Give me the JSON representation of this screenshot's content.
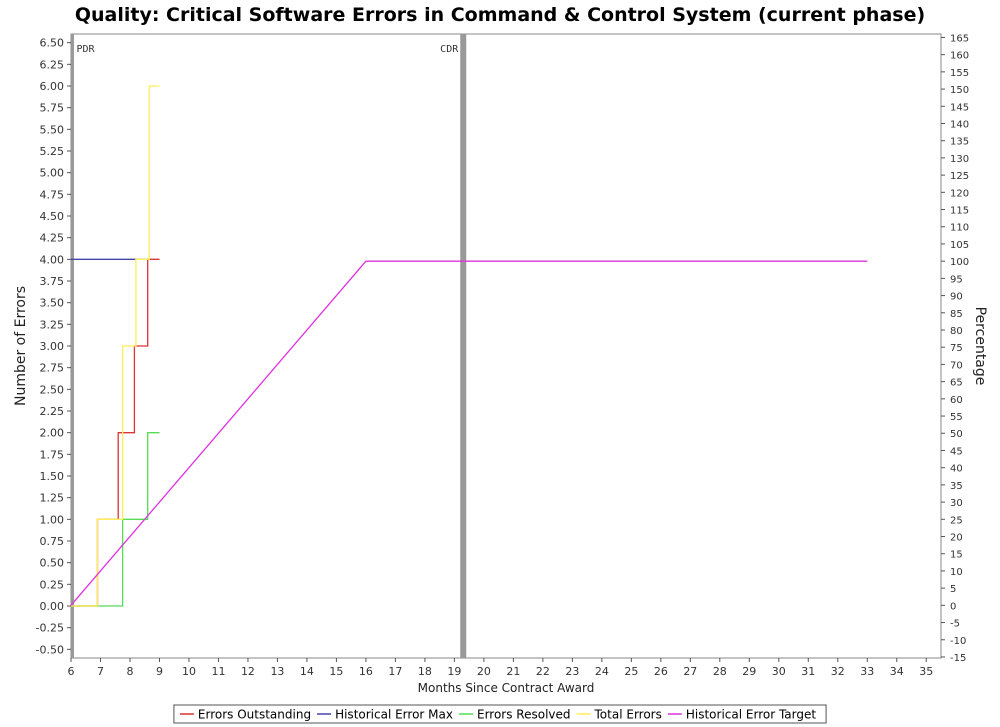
{
  "chart_data": {
    "type": "line",
    "title": "Quality: Critical Software Errors in Command & Control System (current phase)",
    "xlabel": "Months Since Contract Award",
    "ylabel": "Number of Errors",
    "y2label": "Percentage",
    "xlim": [
      6,
      35.5
    ],
    "ylim": [
      -0.6,
      6.6
    ],
    "y2lim": [
      -15.3,
      166
    ],
    "x_ticks": [
      6,
      7,
      8,
      9,
      10,
      11,
      12,
      13,
      14,
      15,
      16,
      17,
      18,
      19,
      20,
      21,
      22,
      23,
      24,
      25,
      26,
      27,
      28,
      29,
      30,
      31,
      32,
      33,
      34,
      35
    ],
    "y_ticks": [
      "-0.50",
      "-0.25",
      "0.00",
      "0.25",
      "0.50",
      "0.75",
      "1.00",
      "1.25",
      "1.50",
      "1.75",
      "2.00",
      "2.25",
      "2.50",
      "2.75",
      "3.00",
      "3.25",
      "3.50",
      "3.75",
      "4.00",
      "4.25",
      "4.50",
      "4.75",
      "5.00",
      "5.25",
      "5.50",
      "5.75",
      "6.00",
      "6.25",
      "6.50"
    ],
    "y2_ticks": [
      -15,
      -10,
      -5,
      0,
      5,
      10,
      15,
      20,
      25,
      30,
      35,
      40,
      45,
      50,
      55,
      60,
      65,
      70,
      75,
      80,
      85,
      90,
      95,
      100,
      105,
      110,
      115,
      120,
      125,
      130,
      135,
      140,
      145,
      150,
      155,
      160,
      165
    ],
    "markers": [
      {
        "label": "PDR",
        "x": 6.05
      },
      {
        "label": "CDR",
        "x": 19.3
      }
    ],
    "series": [
      {
        "name": "Errors Outstanding",
        "color": "#dd3333",
        "axis": "left",
        "step": true,
        "points": [
          [
            6,
            0
          ],
          [
            6.9,
            0
          ],
          [
            6.9,
            1
          ],
          [
            7.6,
            1
          ],
          [
            7.6,
            2
          ],
          [
            8.15,
            2
          ],
          [
            8.15,
            3
          ],
          [
            8.6,
            3
          ],
          [
            8.6,
            4
          ],
          [
            9,
            4
          ]
        ]
      },
      {
        "name": "Historical Error Max",
        "color": "#4444aa",
        "axis": "left",
        "step": false,
        "points": [
          [
            6,
            4
          ],
          [
            8.6,
            4
          ]
        ]
      },
      {
        "name": "Errors Resolved",
        "color": "#55dd55",
        "axis": "left",
        "step": true,
        "points": [
          [
            6,
            0
          ],
          [
            7.75,
            0
          ],
          [
            7.75,
            1
          ],
          [
            8.6,
            1
          ],
          [
            8.6,
            2
          ],
          [
            9,
            2
          ]
        ]
      },
      {
        "name": "Total Errors",
        "color": "#ffee55",
        "axis": "left",
        "step": true,
        "points": [
          [
            6,
            0
          ],
          [
            6.9,
            0
          ],
          [
            6.9,
            1
          ],
          [
            7.75,
            1
          ],
          [
            7.75,
            3
          ],
          [
            8.2,
            3
          ],
          [
            8.2,
            4
          ],
          [
            8.65,
            4
          ],
          [
            8.65,
            6
          ],
          [
            9,
            6
          ]
        ]
      },
      {
        "name": "Historical Error Target",
        "color": "#dd33dd",
        "axis": "right",
        "step": false,
        "points": [
          [
            6,
            0
          ],
          [
            16,
            100
          ],
          [
            33,
            100
          ]
        ]
      }
    ],
    "legend": "bottom"
  }
}
